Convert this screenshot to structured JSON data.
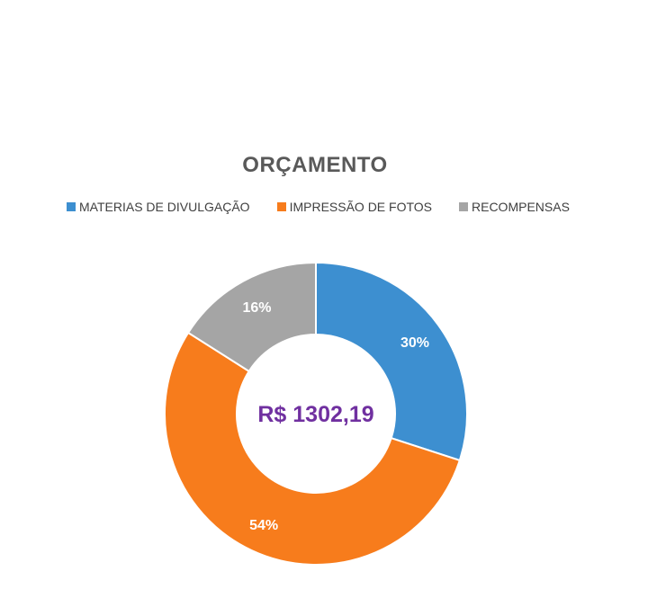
{
  "chart_data": {
    "type": "pie",
    "title": "ORÇAMENTO",
    "categories": [
      "MATERIAS DE DIVULGAÇÃO",
      "IMPRESSÃO DE FOTOS",
      "RECOMPENSAS"
    ],
    "values": [
      30,
      54,
      16
    ],
    "value_labels": [
      "30%",
      "54%",
      "16%"
    ],
    "colors": [
      "#3d8fd0",
      "#f77c1c",
      "#a5a5a5"
    ],
    "center_label": "R$ 1302,19",
    "center_label_color": "#7030a0",
    "legend_position": "top",
    "donut": true
  }
}
